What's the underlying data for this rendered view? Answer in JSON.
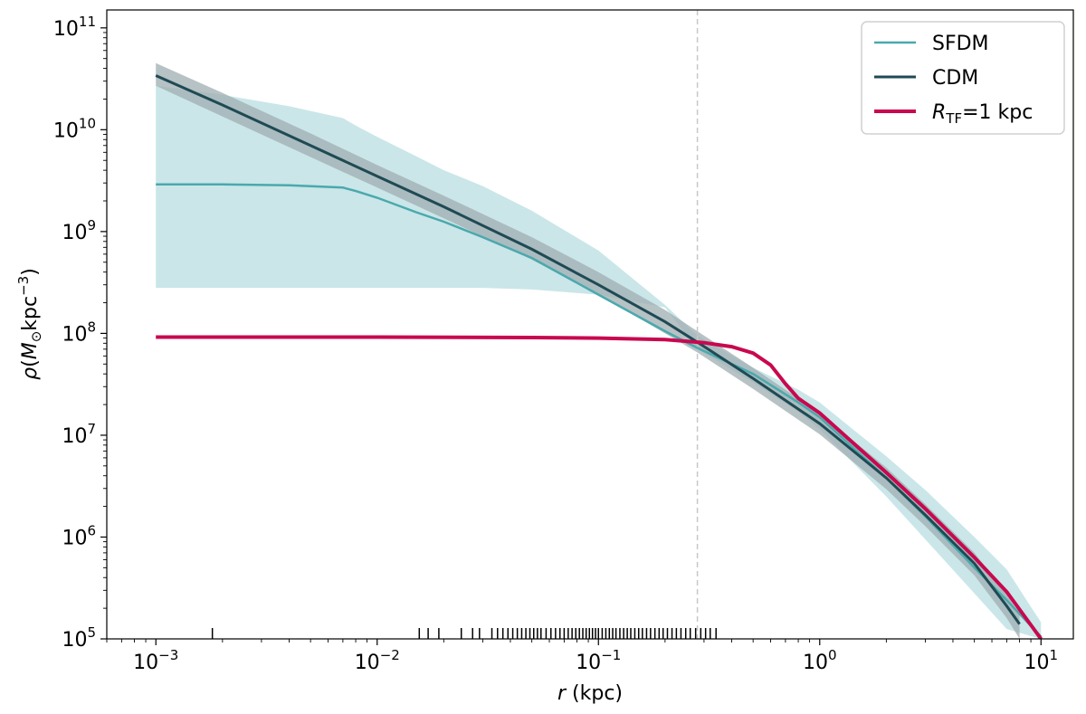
{
  "chart_data": {
    "type": "line",
    "x_scale": "log",
    "y_scale": "log",
    "xlim": [
      0.0006,
      14
    ],
    "ylim": [
      100000,
      150000000000
    ],
    "xlabel": {
      "italic": "r",
      "rest": " (kpc)"
    },
    "ylabel": {
      "rho": "ρ",
      "open": "(",
      "M": "M",
      "sun": "⊙",
      "kpc": "kpc",
      "exp": "−3",
      "close": ")"
    },
    "x_ticks": [
      {
        "value": 0.001,
        "base": "10",
        "exp": "−3"
      },
      {
        "value": 0.01,
        "base": "10",
        "exp": "−2"
      },
      {
        "value": 0.1,
        "base": "10",
        "exp": "−1"
      },
      {
        "value": 1,
        "base": "10",
        "exp": "0"
      },
      {
        "value": 10,
        "base": "10",
        "exp": "1"
      }
    ],
    "y_ticks": [
      {
        "value": 100000,
        "base": "10",
        "exp": "5"
      },
      {
        "value": 1000000,
        "base": "10",
        "exp": "6"
      },
      {
        "value": 10000000,
        "base": "10",
        "exp": "7"
      },
      {
        "value": 100000000,
        "base": "10",
        "exp": "8"
      },
      {
        "value": 1000000000,
        "base": "10",
        "exp": "9"
      },
      {
        "value": 10000000000,
        "base": "10",
        "exp": "10"
      },
      {
        "value": 100000000000,
        "base": "10",
        "exp": "11"
      }
    ],
    "vertical_line": {
      "x": 0.28,
      "style": "dashed",
      "color": "#c8c8c8"
    },
    "legend": {
      "placement": "top-right",
      "entries": [
        {
          "label": "SFDM",
          "color": "#4aa9ad"
        },
        {
          "label": "CDM",
          "color": "#1f4a54"
        },
        {
          "label_italic": "R",
          "label_sub": "TF",
          "label_rest": "=1 kpc",
          "color": "#c8084f"
        }
      ]
    },
    "series": [
      {
        "name": "SFDM",
        "color": "#4aa9ad",
        "band_color": "#b4dcde",
        "x": [
          0.001,
          0.002,
          0.004,
          0.007,
          0.008,
          0.01,
          0.015,
          0.02,
          0.03,
          0.05,
          0.1,
          0.2,
          0.28,
          0.5,
          0.8,
          1,
          2,
          3,
          5,
          7,
          10
        ],
        "y": [
          2900000000,
          2900000000,
          2850000000,
          2700000000,
          2500000000,
          2150000000,
          1550000000,
          1250000000,
          880000000,
          550000000,
          240000000,
          105000000,
          72000000,
          40000000,
          21000000,
          15000000,
          3800000,
          1600000,
          500000,
          240000,
          105000
        ],
        "band_upper": [
          27000000000,
          22000000000,
          17000000000,
          13000000000,
          11000000000,
          8500000000,
          5500000000,
          4000000000,
          2800000000,
          1600000000,
          650000000,
          190000000,
          95000000,
          46000000,
          28000000,
          21000000,
          6200000,
          2900000,
          1000000,
          480000,
          145000
        ],
        "band_lower": [
          280000000,
          280000000,
          280000000,
          280000000,
          280000000,
          280000000,
          280000000,
          280000000,
          280000000,
          270000000,
          240000000,
          180000000,
          70000000,
          33000000,
          17000000,
          11500000,
          2500000,
          950000,
          280000,
          125000,
          100000
        ]
      },
      {
        "name": "CDM",
        "color": "#1f4a54",
        "band_color": "#9fadb1",
        "x": [
          0.001,
          0.002,
          0.005,
          0.01,
          0.02,
          0.05,
          0.1,
          0.2,
          0.28,
          0.5,
          1,
          2,
          3,
          5,
          7,
          8
        ],
        "y": [
          34000000000,
          17500000000,
          7000000000,
          3500000000,
          1750000000,
          670000000,
          300000000,
          130000000,
          82000000,
          36000000,
          13000000,
          3800000,
          1650000,
          550000,
          210000,
          140000
        ],
        "band_upper": [
          45000000000,
          23000000000,
          9200000000,
          4500000000,
          2250000000,
          880000000,
          400000000,
          170000000,
          105000000,
          46000000,
          16500000,
          4800000,
          2100000,
          700000,
          275000,
          175000
        ],
        "band_lower": [
          27000000000,
          13500000000,
          5400000000,
          2700000000,
          1350000000,
          530000000,
          240000000,
          100000000,
          65000000,
          28500000,
          10200000,
          2950000,
          1280000,
          420000,
          160000,
          100000
        ]
      },
      {
        "name": "R_TF=1 kpc",
        "color": "#c8084f",
        "x": [
          0.001,
          0.01,
          0.05,
          0.1,
          0.2,
          0.3,
          0.4,
          0.5,
          0.6,
          0.7,
          0.8,
          1,
          1.5,
          2,
          3,
          5,
          7,
          10
        ],
        "y": [
          92000000,
          92000000,
          91000000,
          90000000,
          87000000,
          81000000,
          74000000,
          64000000,
          49000000,
          32000000,
          23000000,
          16500000,
          7500000,
          4300000,
          1900000,
          630000,
          290000,
          100000
        ]
      }
    ],
    "rug_ticks": [
      0.0018,
      0.0155,
      0.017,
      0.019,
      0.024,
      0.027,
      0.029,
      0.033,
      0.035,
      0.037,
      0.039,
      0.041,
      0.043,
      0.045,
      0.047,
      0.049,
      0.051,
      0.053,
      0.055,
      0.058,
      0.061,
      0.064,
      0.067,
      0.07,
      0.073,
      0.076,
      0.079,
      0.082,
      0.085,
      0.088,
      0.091,
      0.094,
      0.097,
      0.1,
      0.104,
      0.108,
      0.112,
      0.116,
      0.12,
      0.125,
      0.13,
      0.135,
      0.14,
      0.146,
      0.152,
      0.158,
      0.165,
      0.172,
      0.18,
      0.188,
      0.196,
      0.205,
      0.215,
      0.225,
      0.236,
      0.248,
      0.26,
      0.275,
      0.29,
      0.305,
      0.32,
      0.34
    ]
  }
}
